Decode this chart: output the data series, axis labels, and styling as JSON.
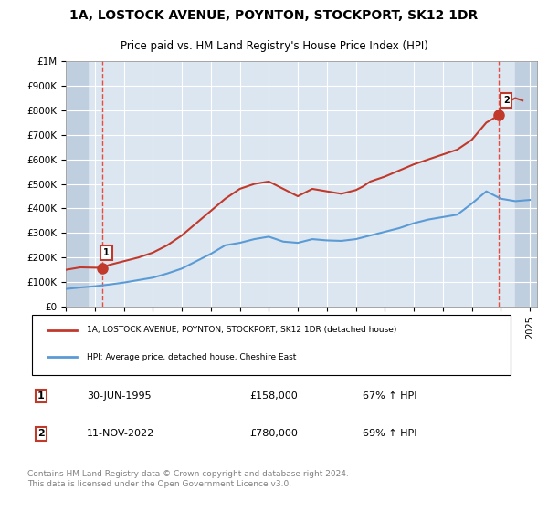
{
  "title_line1": "1A, LOSTOCK AVENUE, POYNTON, STOCKPORT, SK12 1DR",
  "title_line2": "Price paid vs. HM Land Registry's House Price Index (HPI)",
  "xlabel": "",
  "ylabel": "",
  "ylim": [
    0,
    1000000
  ],
  "yticks": [
    0,
    100000,
    200000,
    300000,
    400000,
    500000,
    600000,
    700000,
    800000,
    900000,
    1000000
  ],
  "ytick_labels": [
    "£0",
    "£100K",
    "£200K",
    "£300K",
    "£400K",
    "£500K",
    "£600K",
    "£700K",
    "£800K",
    "£900K",
    "£1M"
  ],
  "xlim_start": 1993.0,
  "xlim_end": 2025.5,
  "background_color": "#ffffff",
  "plot_bg_color": "#dce6f1",
  "hatch_color": "#c0cfe0",
  "grid_color": "#ffffff",
  "red_line_color": "#c0392b",
  "blue_line_color": "#5b9bd5",
  "dashed_red_color": "#e74c3c",
  "marker1_date": 1995.5,
  "marker1_price": 158000,
  "marker2_date": 2022.87,
  "marker2_price": 780000,
  "legend_label1": "1A, LOSTOCK AVENUE, POYNTON, STOCKPORT, SK12 1DR (detached house)",
  "legend_label2": "HPI: Average price, detached house, Cheshire East",
  "annotation1_label": "1",
  "annotation2_label": "2",
  "table_row1": [
    "1",
    "30-JUN-1995",
    "£158,000",
    "67% ↑ HPI"
  ],
  "table_row2": [
    "2",
    "11-NOV-2022",
    "£780,000",
    "69% ↑ HPI"
  ],
  "footer_text": "Contains HM Land Registry data © Crown copyright and database right 2024.\nThis data is licensed under the Open Government Licence v3.0.",
  "hpi_years": [
    1993,
    1994,
    1995,
    1996,
    1997,
    1998,
    1999,
    2000,
    2001,
    2002,
    2003,
    2004,
    2005,
    2006,
    2007,
    2008,
    2009,
    2010,
    2011,
    2012,
    2013,
    2014,
    2015,
    2016,
    2017,
    2018,
    2019,
    2020,
    2021,
    2022,
    2023,
    2024,
    2025
  ],
  "hpi_values": [
    72000,
    78000,
    83000,
    90000,
    98000,
    108000,
    118000,
    135000,
    155000,
    185000,
    215000,
    250000,
    260000,
    275000,
    285000,
    265000,
    260000,
    275000,
    270000,
    268000,
    275000,
    290000,
    305000,
    320000,
    340000,
    355000,
    365000,
    375000,
    420000,
    470000,
    440000,
    430000,
    435000
  ],
  "price_years": [
    1993.0,
    1994.0,
    1995.5,
    1996.0,
    1997.0,
    1998.0,
    1999.0,
    2000.0,
    2001.0,
    2002.0,
    2003.0,
    2004.0,
    2005.0,
    2005.5,
    2006.0,
    2006.5,
    2007.0,
    2008.0,
    2009.0,
    2010.0,
    2011.0,
    2012.0,
    2013.0,
    2013.5,
    2014.0,
    2015.0,
    2016.0,
    2017.0,
    2018.0,
    2019.0,
    2020.0,
    2021.0,
    2022.0,
    2022.87,
    2023.0,
    2024.0,
    2024.5
  ],
  "price_values": [
    150000,
    160000,
    158000,
    170000,
    185000,
    200000,
    220000,
    250000,
    290000,
    340000,
    390000,
    440000,
    480000,
    490000,
    500000,
    505000,
    510000,
    480000,
    450000,
    480000,
    470000,
    460000,
    475000,
    490000,
    510000,
    530000,
    555000,
    580000,
    600000,
    620000,
    640000,
    680000,
    750000,
    780000,
    820000,
    850000,
    840000
  ]
}
